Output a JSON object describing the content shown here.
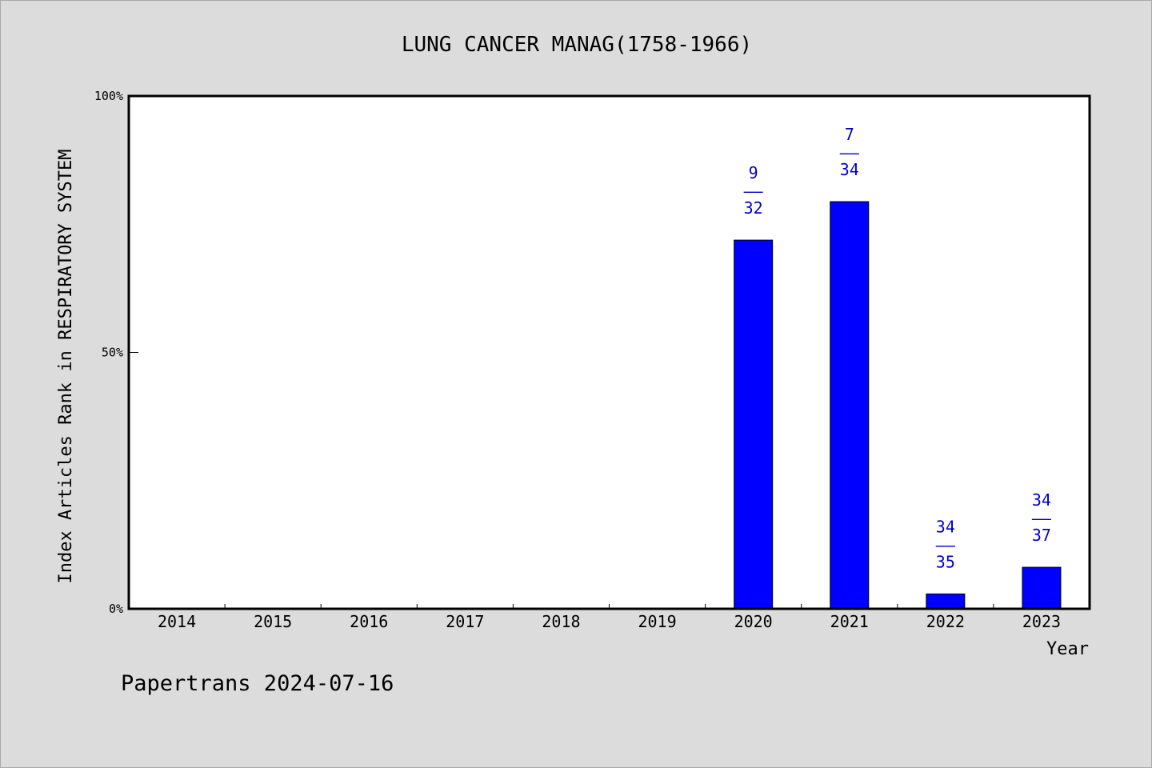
{
  "chart_data": {
    "type": "bar",
    "title": "LUNG CANCER MANAG(1758-1966)",
    "xlabel": "Year",
    "ylabel": "Index Articles Rank in RESPIRATORY SYSTEM",
    "ylim": [
      0,
      100
    ],
    "y_ticks": [
      "0%",
      "50%",
      "100%"
    ],
    "grid": false,
    "bar_color": "#0000ff",
    "label_color": "#0000cc",
    "categories": [
      "2014",
      "2015",
      "2016",
      "2017",
      "2018",
      "2019",
      "2020",
      "2021",
      "2022",
      "2023"
    ],
    "values": [
      null,
      null,
      null,
      null,
      null,
      null,
      71.9,
      79.4,
      2.9,
      8.1
    ],
    "bar_labels": [
      null,
      null,
      null,
      null,
      null,
      null,
      {
        "num": "9",
        "sep": "——",
        "den": "32"
      },
      {
        "num": "7",
        "sep": "——",
        "den": "34"
      },
      {
        "num": "34",
        "sep": "——",
        "den": "35"
      },
      {
        "num": "34",
        "sep": "——",
        "den": "37"
      }
    ]
  },
  "footer": {
    "text": "Papertrans 2024-07-16"
  }
}
